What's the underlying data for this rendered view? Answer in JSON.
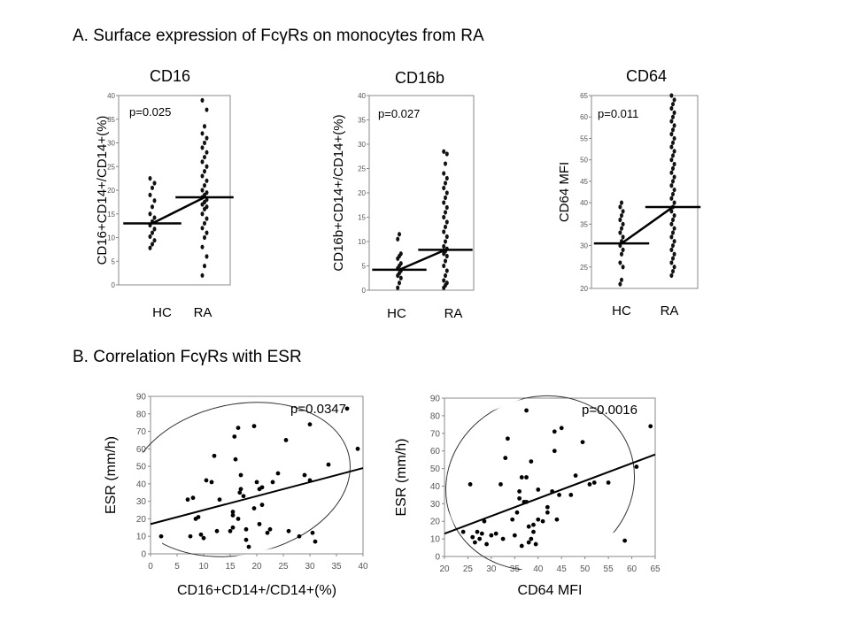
{
  "section_a": {
    "title": "A. Surface expression of FcγRs on monocytes from RA"
  },
  "section_b": {
    "title": "B. Correlation FcγRs with ESR"
  },
  "chart_data": [
    {
      "id": "cd16",
      "type": "dot-plot",
      "title": "CD16",
      "ylabel": "CD16+CD14+/CD14+(%)",
      "ylim": [
        0,
        40
      ],
      "yticks": [
        0,
        5,
        10,
        15,
        20,
        25,
        30,
        35,
        40
      ],
      "categories": [
        "HC",
        "RA"
      ],
      "pvalue": "p=0.025",
      "means": [
        13,
        18.5
      ],
      "values": {
        "HC": [
          7.8,
          8.6,
          9.4,
          10.2,
          11.0,
          11.8,
          12.6,
          13.4,
          14.2,
          15.0,
          16.5,
          17.8,
          19.0,
          20.5,
          21.5,
          22.5
        ],
        "RA": [
          2,
          4,
          6,
          8,
          10,
          11,
          12,
          13,
          14,
          15,
          16,
          16.5,
          17,
          17.5,
          18,
          18.5,
          19,
          19.5,
          20,
          21,
          22,
          23,
          24,
          25,
          26,
          27,
          28,
          29,
          30,
          31,
          32,
          33.5,
          37,
          39
        ]
      }
    },
    {
      "id": "cd16b",
      "type": "dot-plot",
      "title": "CD16b",
      "ylabel": "CD16b+CD14+/CD14+(%)",
      "ylim": [
        0,
        40
      ],
      "yticks": [
        0,
        5,
        10,
        15,
        20,
        25,
        30,
        35,
        40
      ],
      "categories": [
        "HC",
        "RA"
      ],
      "pvalue": "p=0.027",
      "means": [
        4.2,
        8.3
      ],
      "values": {
        "HC": [
          0.5,
          1.5,
          2.5,
          3.0,
          3.5,
          4.0,
          4.5,
          5.0,
          5.5,
          6.5,
          7.0,
          7.5,
          10.5,
          11.5
        ],
        "RA": [
          0.5,
          1,
          1.5,
          2,
          3,
          4,
          5,
          6,
          7,
          7.5,
          8,
          8.5,
          9,
          10,
          11,
          12,
          13,
          14,
          15,
          16,
          17,
          18,
          19,
          20,
          21,
          22,
          23,
          24,
          26,
          28,
          28.5
        ]
      }
    },
    {
      "id": "cd64",
      "type": "dot-plot",
      "title": "CD64",
      "ylabel": "CD64 MFI",
      "ylim": [
        20,
        65
      ],
      "yticks": [
        20,
        25,
        30,
        35,
        40,
        45,
        50,
        55,
        60,
        65
      ],
      "categories": [
        "HC",
        "RA"
      ],
      "pvalue": "p=0.011",
      "means": [
        30.5,
        39
      ],
      "values": {
        "HC": [
          21,
          22,
          25,
          26,
          28,
          29,
          30,
          31,
          32,
          33,
          34,
          35,
          36,
          37,
          38,
          39,
          40
        ],
        "RA": [
          23,
          24,
          25,
          26,
          27,
          28,
          29,
          30,
          31,
          32,
          33,
          34,
          35,
          36,
          37,
          38,
          39,
          40,
          41,
          42,
          43,
          44,
          45,
          46,
          47,
          48,
          49,
          50,
          51,
          52,
          53,
          54,
          55,
          56,
          57,
          58,
          59,
          60,
          61,
          62,
          63,
          64,
          65
        ]
      }
    },
    {
      "id": "esr-cd16",
      "type": "scatter",
      "xlabel": "CD16+CD14+/CD14+(%)",
      "ylabel": "ESR (mm/h)",
      "xlim": [
        0,
        40
      ],
      "ylim": [
        0,
        90
      ],
      "xticks": [
        0,
        5,
        10,
        15,
        20,
        25,
        30,
        35,
        40
      ],
      "yticks": [
        0,
        10,
        20,
        30,
        40,
        50,
        60,
        70,
        80,
        90
      ],
      "pvalue": "p=0.0347",
      "regression": {
        "x": [
          0,
          40
        ],
        "y": [
          17,
          49
        ]
      },
      "points": [
        [
          2,
          10
        ],
        [
          7,
          31
        ],
        [
          7.5,
          10
        ],
        [
          8,
          32
        ],
        [
          8.5,
          20
        ],
        [
          9,
          21
        ],
        [
          9.5,
          11
        ],
        [
          10,
          9
        ],
        [
          10.5,
          42
        ],
        [
          11.5,
          41
        ],
        [
          12,
          56
        ],
        [
          12.5,
          13
        ],
        [
          13,
          31
        ],
        [
          15,
          13
        ],
        [
          15.5,
          15
        ],
        [
          15.5,
          22
        ],
        [
          15.5,
          24
        ],
        [
          15.8,
          67
        ],
        [
          16,
          54
        ],
        [
          16.5,
          72
        ],
        [
          16.5,
          20
        ],
        [
          16.8,
          35
        ],
        [
          17,
          37
        ],
        [
          17,
          45
        ],
        [
          17.5,
          33
        ],
        [
          18,
          14
        ],
        [
          18,
          8
        ],
        [
          18.5,
          4
        ],
        [
          19.5,
          26
        ],
        [
          19.5,
          73
        ],
        [
          20,
          41
        ],
        [
          20.5,
          37
        ],
        [
          20.5,
          17
        ],
        [
          21,
          28
        ],
        [
          21,
          38
        ],
        [
          22,
          12
        ],
        [
          22.5,
          14
        ],
        [
          23,
          41
        ],
        [
          24,
          46
        ],
        [
          25.5,
          65
        ],
        [
          26,
          13
        ],
        [
          28,
          10
        ],
        [
          29,
          45
        ],
        [
          30,
          42
        ],
        [
          30,
          74
        ],
        [
          30.5,
          12
        ],
        [
          31,
          7
        ],
        [
          33.5,
          51
        ],
        [
          37,
          83
        ],
        [
          39,
          60
        ]
      ]
    },
    {
      "id": "esr-cd64",
      "type": "scatter",
      "xlabel": "CD64 MFI",
      "ylabel": "ESR (mm/h)",
      "xlim": [
        20,
        65
      ],
      "ylim": [
        0,
        90
      ],
      "xticks": [
        20,
        25,
        30,
        35,
        40,
        45,
        50,
        55,
        60,
        65
      ],
      "yticks": [
        0,
        10,
        20,
        30,
        40,
        50,
        60,
        70,
        80,
        90
      ],
      "pvalue": "p=0.0016",
      "regression": {
        "x": [
          20,
          65
        ],
        "y": [
          13,
          58
        ]
      },
      "points": [
        [
          24,
          14
        ],
        [
          25.5,
          41
        ],
        [
          26,
          11
        ],
        [
          26.5,
          8
        ],
        [
          27,
          14
        ],
        [
          27.5,
          10
        ],
        [
          28,
          13
        ],
        [
          28.5,
          20
        ],
        [
          29,
          7
        ],
        [
          30,
          12
        ],
        [
          31,
          13
        ],
        [
          32,
          41
        ],
        [
          32.5,
          10
        ],
        [
          33,
          56
        ],
        [
          33.5,
          67
        ],
        [
          34.5,
          21
        ],
        [
          35,
          12
        ],
        [
          35.5,
          25
        ],
        [
          36,
          37
        ],
        [
          36,
          33
        ],
        [
          36.5,
          6
        ],
        [
          36.5,
          45
        ],
        [
          37,
          31
        ],
        [
          37.5,
          83
        ],
        [
          37.5,
          45
        ],
        [
          37.5,
          31
        ],
        [
          38,
          17
        ],
        [
          38,
          8
        ],
        [
          38.5,
          54
        ],
        [
          38.5,
          10
        ],
        [
          39,
          18
        ],
        [
          39,
          14
        ],
        [
          39.5,
          7
        ],
        [
          40,
          21
        ],
        [
          40,
          38
        ],
        [
          41,
          20
        ],
        [
          42,
          25
        ],
        [
          42,
          28
        ],
        [
          43,
          37
        ],
        [
          43.5,
          60
        ],
        [
          43.5,
          71
        ],
        [
          44,
          21
        ],
        [
          44.5,
          35
        ],
        [
          45,
          73
        ],
        [
          47,
          35
        ],
        [
          48,
          46
        ],
        [
          49.5,
          65
        ],
        [
          51,
          41
        ],
        [
          52,
          42
        ],
        [
          55,
          42
        ],
        [
          58.5,
          9
        ],
        [
          61,
          51
        ],
        [
          64,
          74
        ]
      ]
    }
  ]
}
